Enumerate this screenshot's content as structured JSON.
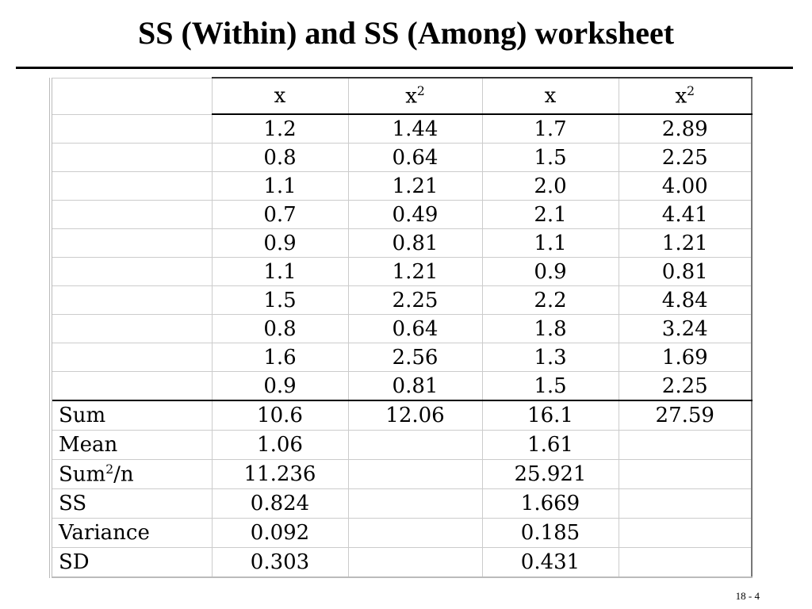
{
  "title": "SS (Within) and SS (Among) worksheet",
  "table": {
    "header": [
      null,
      "x",
      [
        "x",
        "2"
      ],
      "x",
      [
        "x",
        "2"
      ]
    ],
    "rows": [
      [
        null,
        "1.2",
        "1.44",
        "1.7",
        "2.89"
      ],
      [
        null,
        "0.8",
        "0.64",
        "1.5",
        "2.25"
      ],
      [
        null,
        "1.1",
        "1.21",
        "2.0",
        "4.00"
      ],
      [
        null,
        "0.7",
        "0.49",
        "2.1",
        "4.41"
      ],
      [
        null,
        "0.9",
        "0.81",
        "1.1",
        "1.21"
      ],
      [
        null,
        "1.1",
        "1.21",
        "0.9",
        "0.81"
      ],
      [
        null,
        "1.5",
        "2.25",
        "2.2",
        "4.84"
      ],
      [
        null,
        "0.8",
        "0.64",
        "1.8",
        "3.24"
      ],
      [
        null,
        "1.6",
        "2.56",
        "1.3",
        "1.69"
      ],
      [
        null,
        "0.9",
        "0.81",
        "1.5",
        "2.25"
      ]
    ],
    "summary": [
      [
        "Sum",
        "10.6",
        "12.06",
        "16.1",
        "27.59"
      ],
      [
        "Mean",
        "1.06",
        null,
        "1.61",
        null
      ],
      [
        [
          "Sum",
          "2",
          "/n"
        ],
        "11.236",
        null,
        "25.921",
        null
      ],
      [
        "SS",
        "0.824",
        null,
        "1.669",
        null
      ],
      [
        "Variance",
        "0.092",
        null,
        "0.185",
        null
      ],
      [
        "SD",
        "0.303",
        null,
        "0.431",
        null
      ]
    ]
  },
  "footer": "18 - 4"
}
